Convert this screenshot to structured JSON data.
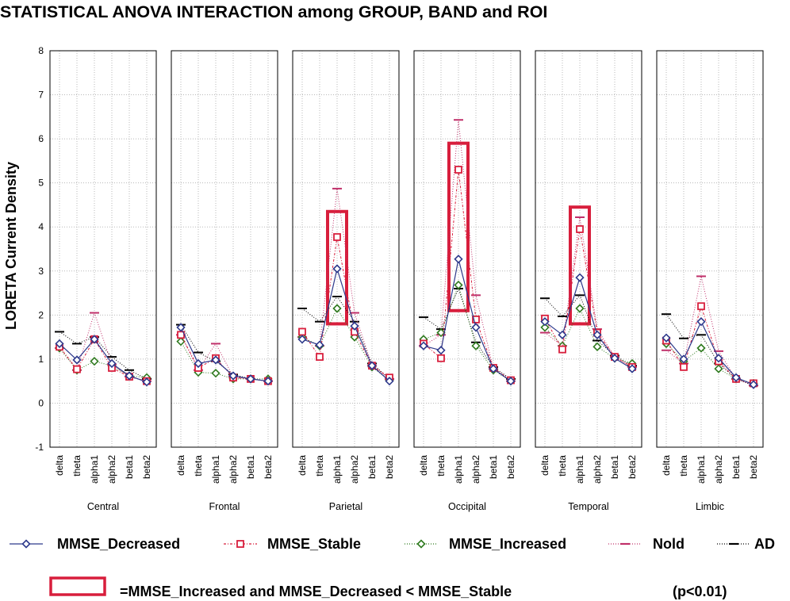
{
  "chart_data": {
    "type": "line",
    "title": "STATISTICAL ANOVA INTERACTION among GROUP, BAND and ROI",
    "ylabel": "LORETA Current Density",
    "ylim": [
      -1,
      8
    ],
    "yticks": [
      "-1",
      "0",
      "1",
      "2",
      "3",
      "4",
      "5",
      "6",
      "7",
      "8"
    ],
    "grid": true,
    "legend_position": "bottom",
    "categories": [
      "delta",
      "theta",
      "alpha1",
      "alpha2",
      "beta1",
      "beta2"
    ],
    "series_styles": [
      {
        "name": "MMSE_Decreased",
        "color": "#2e3a8c",
        "marker": "diamond",
        "dash": "solid"
      },
      {
        "name": "MMSE_Stable",
        "color": "#d81e3c",
        "marker": "square",
        "dash": "dashdot"
      },
      {
        "name": "MMSE_Increased",
        "color": "#2f7a1f",
        "marker": "diamond",
        "dash": "dotted"
      },
      {
        "name": "Nold",
        "color": "#c0306a",
        "marker": "dash",
        "dash": "dotted"
      },
      {
        "name": "AD",
        "color": "#000000",
        "marker": "dash",
        "dash": "dotted"
      }
    ],
    "panels": [
      {
        "name": "Central",
        "series": [
          {
            "name": "MMSE_Decreased",
            "values": [
              1.35,
              0.98,
              1.45,
              0.9,
              0.62,
              0.48
            ]
          },
          {
            "name": "MMSE_Stable",
            "values": [
              1.28,
              0.77,
              1.45,
              0.8,
              0.6,
              0.5
            ]
          },
          {
            "name": "MMSE_Increased",
            "values": [
              1.25,
              0.75,
              0.95,
              0.85,
              0.62,
              0.58
            ]
          },
          {
            "name": "Nold",
            "values": [
              1.25,
              0.75,
              2.05,
              0.88,
              0.6,
              0.5
            ]
          },
          {
            "name": "AD",
            "values": [
              1.62,
              1.35,
              1.5,
              1.05,
              0.75,
              0.55
            ]
          }
        ],
        "highlight": null
      },
      {
        "name": "Frontal",
        "series": [
          {
            "name": "MMSE_Decreased",
            "values": [
              1.72,
              0.9,
              0.98,
              0.62,
              0.55,
              0.5
            ]
          },
          {
            "name": "MMSE_Stable",
            "values": [
              1.55,
              0.8,
              1.02,
              0.58,
              0.55,
              0.5
            ]
          },
          {
            "name": "MMSE_Increased",
            "values": [
              1.4,
              0.7,
              0.68,
              0.55,
              0.55,
              0.55
            ]
          },
          {
            "name": "Nold",
            "values": [
              1.55,
              0.75,
              1.35,
              0.6,
              0.55,
              0.5
            ]
          },
          {
            "name": "AD",
            "values": [
              1.78,
              1.15,
              0.95,
              0.65,
              0.55,
              0.5
            ]
          }
        ],
        "highlight": null
      },
      {
        "name": "Parietal",
        "series": [
          {
            "name": "MMSE_Decreased",
            "values": [
              1.45,
              1.32,
              3.05,
              1.75,
              0.85,
              0.5
            ]
          },
          {
            "name": "MMSE_Stable",
            "values": [
              1.62,
              1.05,
              3.77,
              1.62,
              0.85,
              0.58
            ]
          },
          {
            "name": "MMSE_Increased",
            "values": [
              1.5,
              1.3,
              2.15,
              1.5,
              0.82,
              0.52
            ]
          },
          {
            "name": "Nold",
            "values": [
              1.5,
              1.3,
              4.87,
              2.05,
              0.85,
              0.55
            ]
          },
          {
            "name": "AD",
            "values": [
              2.15,
              1.85,
              2.42,
              1.85,
              0.9,
              0.55
            ]
          }
        ],
        "highlight": {
          "category": "alpha1",
          "from": 1.8,
          "to": 4.35
        }
      },
      {
        "name": "Occipital",
        "series": [
          {
            "name": "MMSE_Decreased",
            "values": [
              1.3,
              1.2,
              3.27,
              1.72,
              0.78,
              0.5
            ]
          },
          {
            "name": "MMSE_Stable",
            "values": [
              1.35,
              1.02,
              5.3,
              1.9,
              0.8,
              0.52
            ]
          },
          {
            "name": "MMSE_Increased",
            "values": [
              1.45,
              1.6,
              2.68,
              1.3,
              0.75,
              0.5
            ]
          },
          {
            "name": "Nold",
            "values": [
              1.3,
              1.55,
              6.43,
              2.45,
              0.78,
              0.5
            ]
          },
          {
            "name": "AD",
            "values": [
              1.95,
              1.68,
              2.6,
              1.38,
              0.82,
              0.55
            ]
          }
        ],
        "highlight": {
          "category": "alpha1",
          "from": 2.1,
          "to": 5.9
        }
      },
      {
        "name": "Temporal",
        "series": [
          {
            "name": "MMSE_Decreased",
            "values": [
              1.85,
              1.55,
              2.85,
              1.55,
              1.02,
              0.78
            ]
          },
          {
            "name": "MMSE_Stable",
            "values": [
              1.92,
              1.22,
              3.95,
              1.6,
              1.05,
              0.82
            ]
          },
          {
            "name": "MMSE_Increased",
            "values": [
              1.72,
              1.3,
              2.15,
              1.28,
              1.02,
              0.9
            ]
          },
          {
            "name": "Nold",
            "values": [
              1.6,
              1.3,
              4.22,
              1.68,
              1.05,
              0.82
            ]
          },
          {
            "name": "AD",
            "values": [
              2.38,
              1.97,
              2.45,
              1.42,
              1.08,
              0.85
            ]
          }
        ],
        "highlight": {
          "category": "alpha1",
          "from": 1.8,
          "to": 4.45
        }
      },
      {
        "name": "Limbic",
        "series": [
          {
            "name": "MMSE_Decreased",
            "values": [
              1.48,
              1.0,
              1.85,
              1.02,
              0.58,
              0.42
            ]
          },
          {
            "name": "MMSE_Stable",
            "values": [
              1.42,
              0.82,
              2.2,
              0.95,
              0.55,
              0.45
            ]
          },
          {
            "name": "MMSE_Increased",
            "values": [
              1.35,
              0.95,
              1.25,
              0.78,
              0.55,
              0.45
            ]
          },
          {
            "name": "Nold",
            "values": [
              1.2,
              0.9,
              2.88,
              1.18,
              0.55,
              0.4
            ]
          },
          {
            "name": "AD",
            "values": [
              2.02,
              1.47,
              1.55,
              0.9,
              0.55,
              0.4
            ]
          }
        ],
        "highlight": null
      }
    ],
    "legend": [
      {
        "name": "MMSE_Decreased",
        "label": "MMSE_Decreased"
      },
      {
        "name": "MMSE_Stable",
        "label": "MMSE_Stable"
      },
      {
        "name": "MMSE_Increased",
        "label": "MMSE_Increased"
      },
      {
        "name": "Nold",
        "label": "Nold"
      },
      {
        "name": "AD",
        "label": "AD"
      }
    ],
    "note": {
      "text": "=MMSE_Increased and MMSE_Decreased < MMSE_Stable",
      "pvalue": "(p<0.01)",
      "color": "#d81e3c"
    }
  }
}
